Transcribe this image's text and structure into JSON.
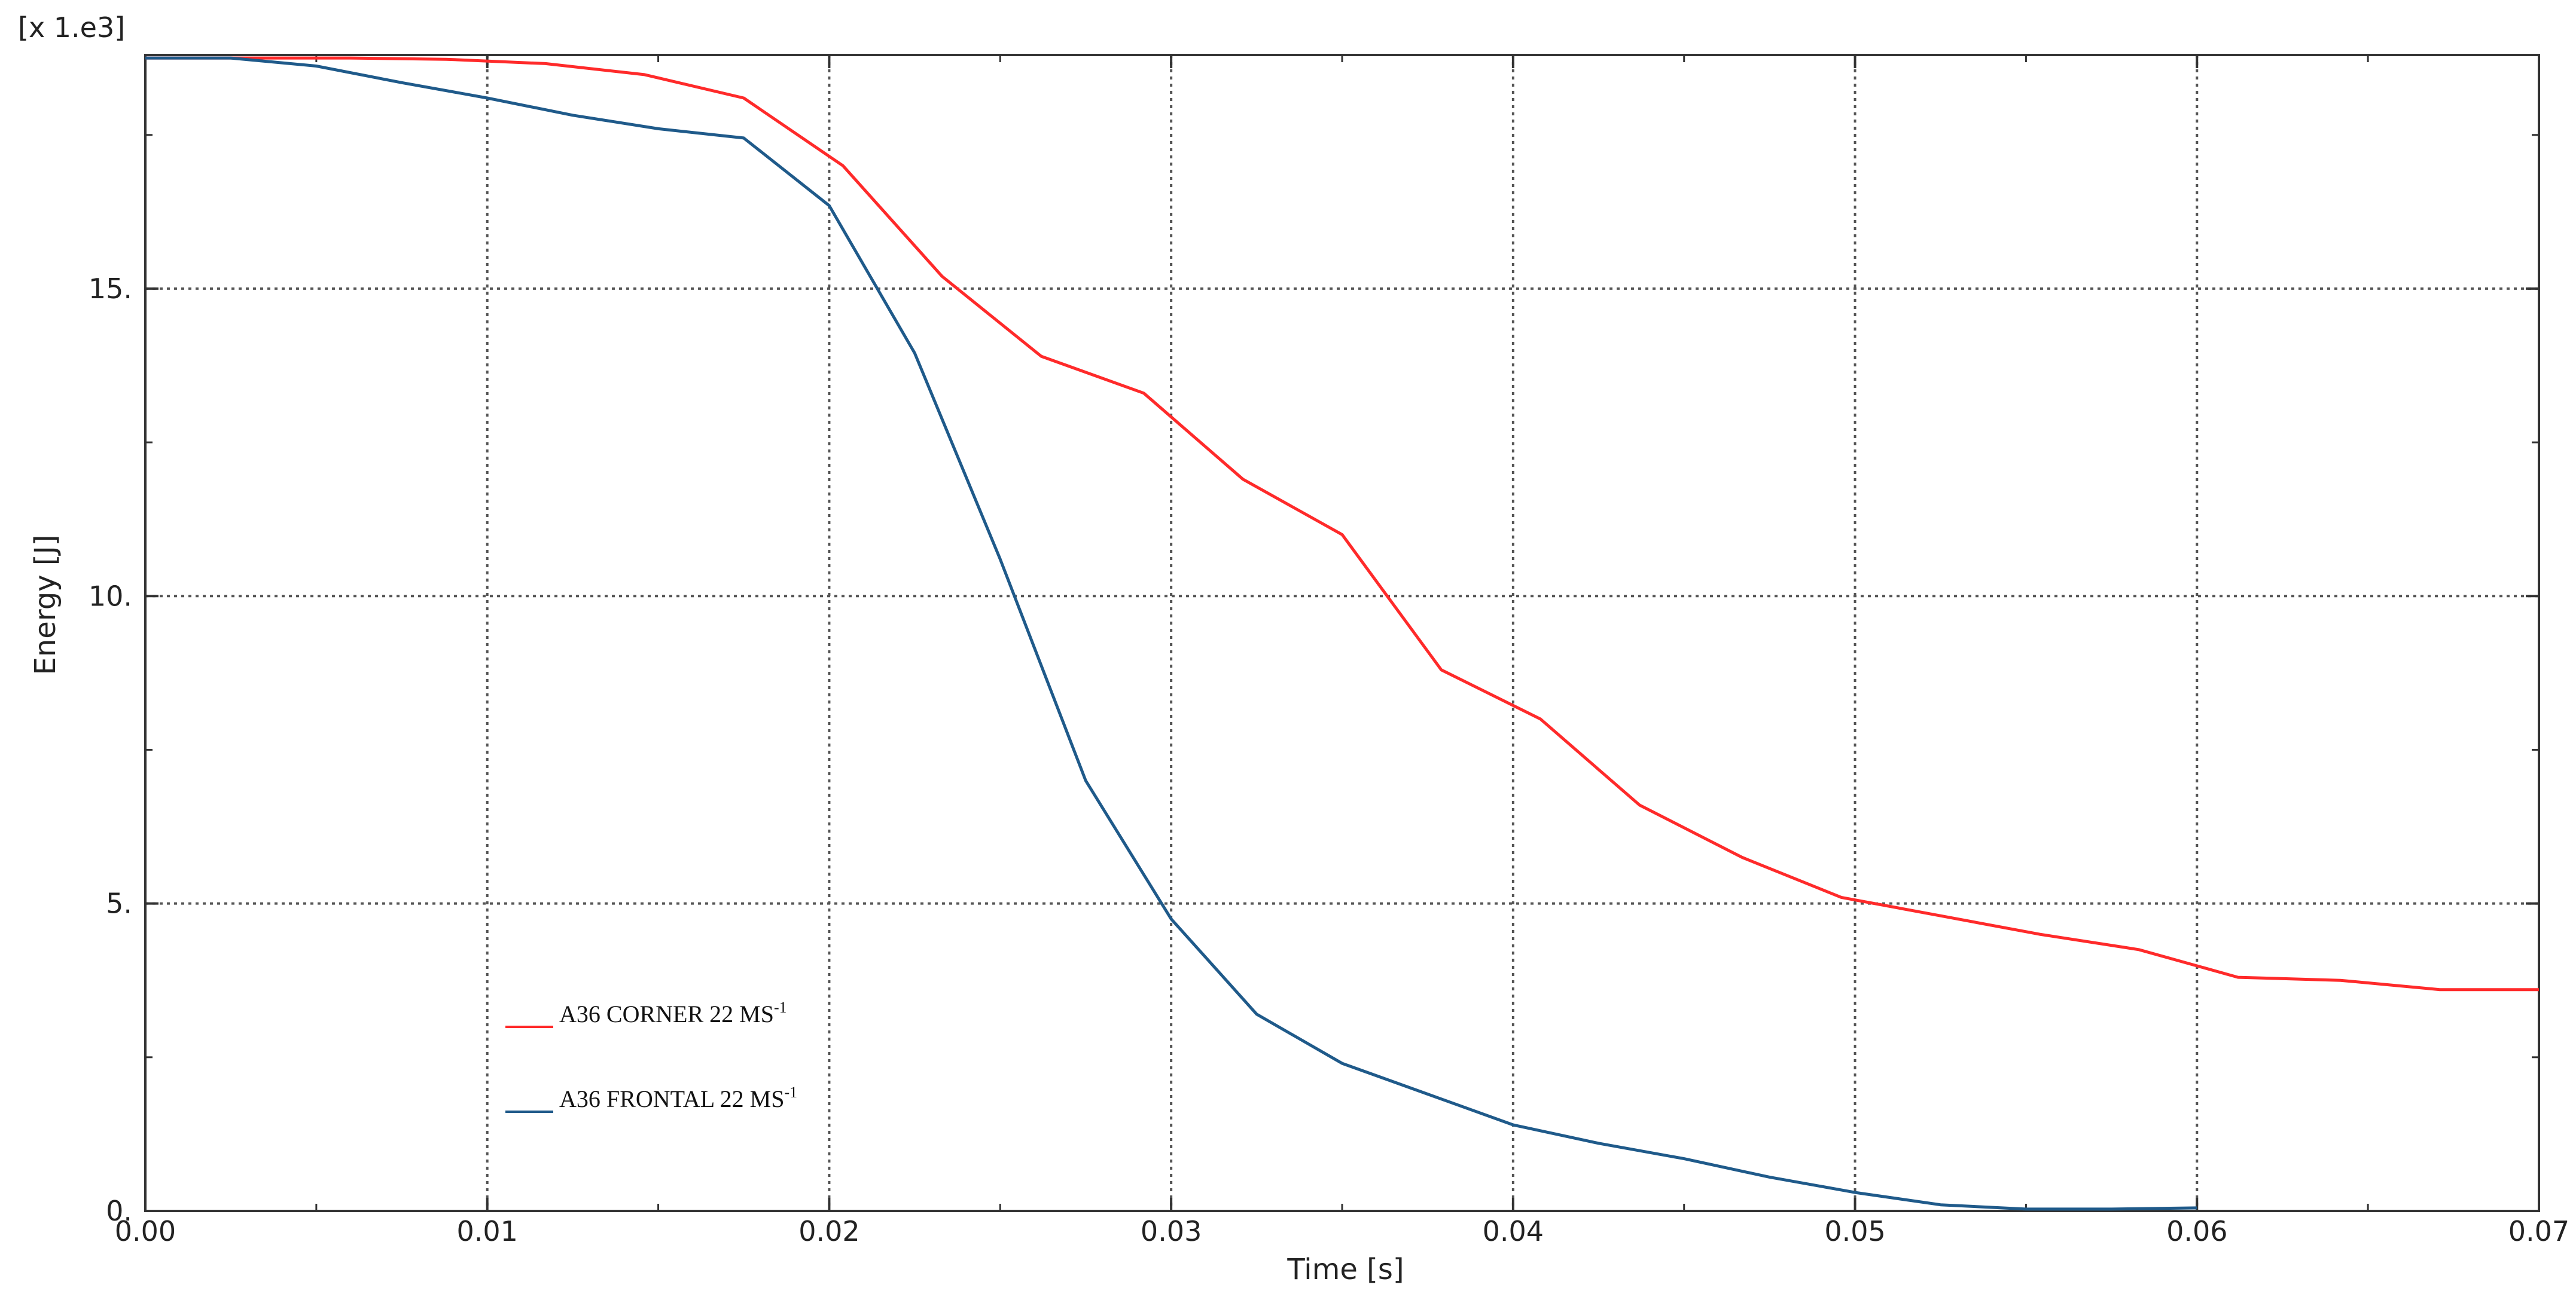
{
  "chart_data": {
    "type": "line",
    "title": "",
    "xlabel": "Time [s]",
    "ylabel": "Energy [J]",
    "y_multiplier_label": "[x 1.e3]",
    "xlim": [
      0,
      0.07
    ],
    "ylim": [
      0,
      18.8
    ],
    "grid": true,
    "legend_position": "lower-left",
    "x_ticks": [
      {
        "value": 0.0,
        "label": "0.00"
      },
      {
        "value": 0.01,
        "label": "0.01"
      },
      {
        "value": 0.02,
        "label": "0.02"
      },
      {
        "value": 0.03,
        "label": "0.03"
      },
      {
        "value": 0.04,
        "label": "0.04"
      },
      {
        "value": 0.05,
        "label": "0.05"
      },
      {
        "value": 0.06,
        "label": "0.06"
      },
      {
        "value": 0.07,
        "label": "0.07"
      }
    ],
    "y_ticks": [
      {
        "value": 0,
        "label": "0."
      },
      {
        "value": 5,
        "label": "5."
      },
      {
        "value": 10,
        "label": "10."
      },
      {
        "value": 15,
        "label": "15."
      }
    ],
    "series": [
      {
        "name": "A36 CORNER 22 MS",
        "name_sup": "-1",
        "color": "#ff2a2a",
        "x": [
          0,
          0.003,
          0.006,
          0.0088,
          0.0117,
          0.0146,
          0.0175,
          0.0204,
          0.0233,
          0.0262,
          0.0292,
          0.0321,
          0.035,
          0.0379,
          0.0408,
          0.0437,
          0.0467,
          0.0496,
          0.0525,
          0.0554,
          0.0583,
          0.0612,
          0.0642,
          0.0671,
          0.07
        ],
        "y": [
          18.75,
          18.75,
          18.75,
          18.73,
          18.66,
          18.48,
          18.1,
          17.0,
          15.2,
          13.9,
          13.3,
          11.9,
          11.0,
          8.8,
          8.0,
          6.6,
          5.75,
          5.1,
          4.8,
          4.5,
          4.25,
          3.8,
          3.75,
          3.6,
          3.6
        ]
      },
      {
        "name": "A36 FRONTAL 22 MS",
        "name_sup": "-1",
        "color": "#1f5a8a",
        "x": [
          0,
          0.0025,
          0.005,
          0.0075,
          0.01,
          0.0125,
          0.015,
          0.0175,
          0.02,
          0.0225,
          0.025,
          0.0275,
          0.03,
          0.0325,
          0.035,
          0.0375,
          0.04,
          0.0425,
          0.045,
          0.0475,
          0.05,
          0.0525,
          0.055,
          0.0575,
          0.06
        ],
        "y": [
          18.75,
          18.75,
          18.62,
          18.35,
          18.1,
          17.82,
          17.6,
          17.45,
          16.35,
          13.95,
          10.6,
          7.0,
          4.75,
          3.2,
          2.4,
          1.9,
          1.4,
          1.1,
          0.85,
          0.55,
          0.3,
          0.1,
          0.03,
          0.03,
          0.05
        ]
      }
    ]
  }
}
